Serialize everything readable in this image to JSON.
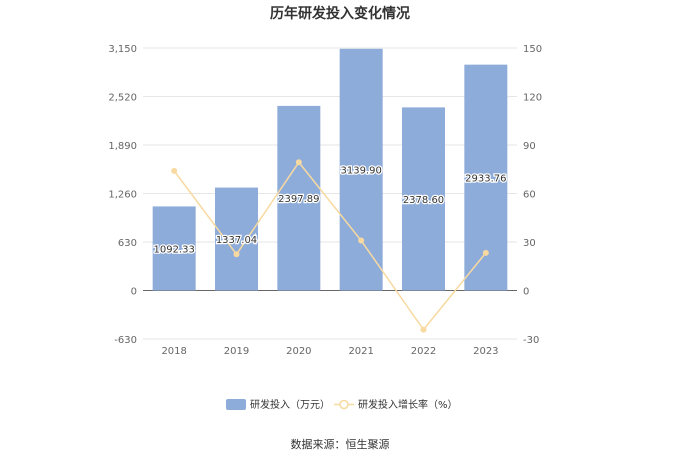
{
  "chart_data": {
    "type": "bar",
    "title": "历年研发投入变化情况",
    "categories": [
      "2018",
      "2019",
      "2020",
      "2021",
      "2022",
      "2023"
    ],
    "series": [
      {
        "name": "研发投入（万元）",
        "type": "bar",
        "axis": "left",
        "color": "#8eacd9",
        "values": [
          1092.33,
          1337.04,
          2397.89,
          3139.9,
          2378.6,
          2933.76
        ],
        "labels": [
          "1092.33",
          "1337.04",
          "2397.89",
          "3139.90",
          "2378.60",
          "2933.76"
        ]
      },
      {
        "name": "研发投入增长率（%）",
        "type": "line",
        "axis": "right",
        "color": "#f8d9a0",
        "values": [
          74,
          22.4,
          79.3,
          30.9,
          -24.2,
          23.3
        ]
      }
    ],
    "y_left": {
      "min": -630,
      "max": 3150,
      "ticks": [
        -630,
        0,
        630,
        1260,
        1890,
        2520,
        3150
      ],
      "tick_labels": [
        "-630",
        "0",
        "630",
        "1,260",
        "1,890",
        "2,520",
        "3,150"
      ]
    },
    "y_right": {
      "min": -30,
      "max": 150,
      "ticks": [
        -30,
        0,
        30,
        60,
        90,
        120,
        150
      ],
      "tick_labels": [
        "-30",
        "0",
        "30",
        "60",
        "90",
        "120",
        "150"
      ]
    },
    "grid": true,
    "legend_position": "bottom"
  },
  "source": "数据来源：恒生聚源"
}
